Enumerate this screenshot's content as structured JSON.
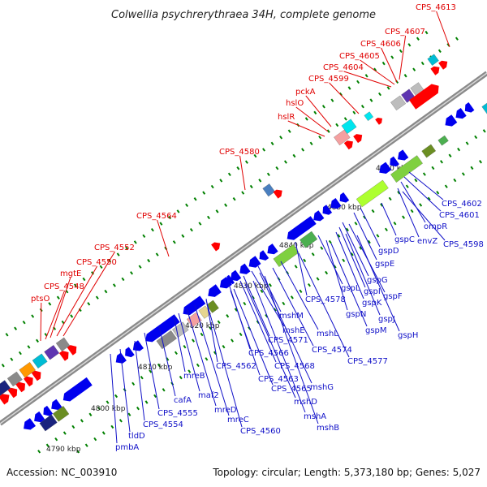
{
  "title": "Colwellia psychrerythraea 34H, complete genome",
  "footer": {
    "accession": "Accession: NC_003910",
    "summary": "Topology: circular; Length: 5,373,180 bp; Genes: 5,027"
  },
  "scale": [
    "4790 kbp",
    "4800 kbp",
    "4810 kbp",
    "4820 kbp",
    "4830 kbp",
    "4840 kbp",
    "4850 kbp",
    "4860 kbp"
  ],
  "labels": {
    "top": [
      "CPS_4613",
      "CPS_4607",
      "CPS_4606",
      "CPS_4605",
      "CPS_4604",
      "CPS_4599",
      "pckA",
      "hslO",
      "hslR",
      "CPS_4580",
      "CPS_4564",
      "CPS_4552",
      "CPS_4550",
      "mgtE",
      "CPS_4548",
      "ptsO"
    ],
    "bottom": [
      "CPS_4602",
      "CPS_4601",
      "ompR",
      "envZ",
      "CPS_4598",
      "gspC",
      "gspD",
      "gspE",
      "gspG",
      "gspI",
      "gspF",
      "gspK",
      "gspL",
      "CPS_4578",
      "gspN",
      "gspJ",
      "gspM",
      "gspH",
      "mshM",
      "mshE",
      "mshL",
      "CPS_4571",
      "CPS_4574",
      "CPS_4566",
      "CPS_4568",
      "CPS_4577",
      "CPS_4562",
      "CPS_4563",
      "CPS_4565",
      "mshG",
      "mshD",
      "mshA",
      "mshB",
      "mreB",
      "maf2",
      "cafA",
      "mreD",
      "mreC",
      "CPS_4560",
      "CPS_4555",
      "CPS_4554",
      "tldD",
      "pmbA"
    ]
  },
  "colors": {
    "forward": "#ff0000",
    "reverse": "#0000ee",
    "backbone": "#8a8a8a",
    "tick": "#008000",
    "label_forward": "#e00000",
    "label_reverse": "#1010c8"
  }
}
